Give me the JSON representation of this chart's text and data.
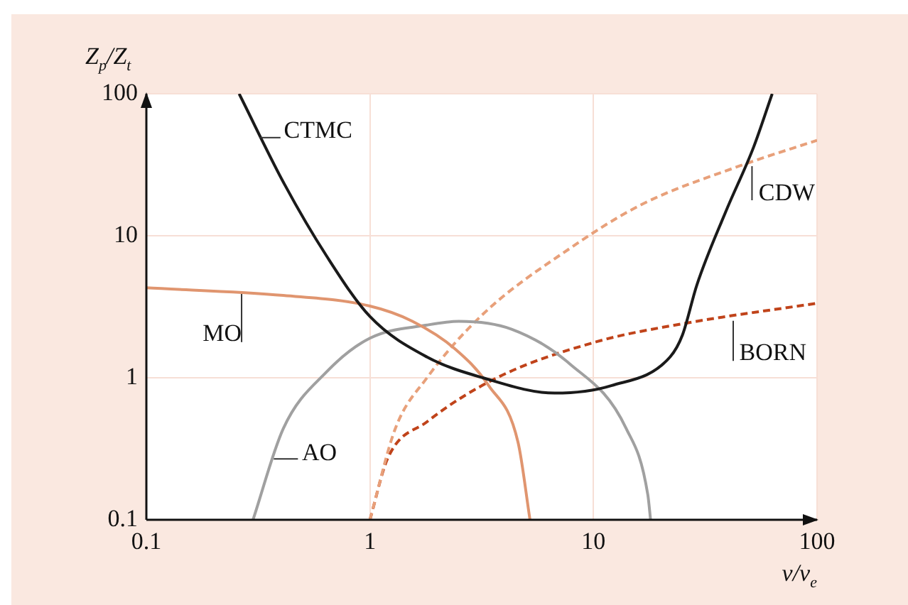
{
  "chart_data": {
    "type": "line",
    "xlabel": "v/v$_{e}$",
    "ylabel": "Z$_{p}$/Z$_{t}$",
    "log": "xy",
    "grid": true,
    "legend": false,
    "marker": "none",
    "xlim": [
      0.1,
      100
    ],
    "xticks": [
      0.1,
      1,
      10,
      100
    ],
    "ylim": [
      0.1,
      100
    ],
    "yticks": [
      0.1,
      1,
      10,
      100
    ],
    "series": [
      {
        "name": "CTMC",
        "color": "#1a1a1a",
        "line_style": "solid",
        "x": [
          0.26,
          0.415,
          0.64,
          1.0,
          1.8,
          3.2,
          6.7,
          12,
          22,
          25,
          29,
          39,
          52,
          63
        ],
        "values": [
          100,
          23,
          7.2,
          2.7,
          1.4,
          1.0,
          0.78,
          0.88,
          1.4,
          2.0,
          4.5,
          14.7,
          42,
          100
        ]
      },
      {
        "name": "MO",
        "color": "#e0956f",
        "line_style": "solid",
        "x": [
          0.1,
          0.41,
          1.0,
          1.55,
          2.4,
          3.4,
          4.6,
          5.2
        ],
        "values": [
          4.3,
          3.8,
          3.2,
          2.5,
          1.6,
          0.88,
          0.35,
          0.1
        ]
      },
      {
        "name": "AO",
        "color": "#a0a0a0",
        "line_style": "solid",
        "x": [
          0.3,
          0.41,
          0.64,
          1.0,
          1.8,
          2.5,
          4.3,
          7.8,
          14,
          17.5,
          18
        ],
        "values": [
          0.1,
          0.44,
          1.1,
          1.9,
          2.35,
          2.5,
          2.2,
          1.26,
          0.44,
          0.15,
          0.1
        ]
      },
      {
        "name": "CDW",
        "color": "#e8a07a",
        "line_style": "dashed",
        "x": [
          1.0,
          1.3,
          1.8,
          3.2,
          7.8,
          16.3,
          45,
          100
        ],
        "values": [
          0.1,
          0.44,
          1.0,
          2.8,
          8.1,
          16.5,
          31,
          47
        ]
      },
      {
        "name": "BORN",
        "color": "#c0431a",
        "line_style": "dashed",
        "x": [
          1.0,
          1.2,
          1.8,
          3.7,
          10.4,
          25,
          100
        ],
        "values": [
          0.1,
          0.27,
          0.49,
          1.0,
          1.8,
          2.4,
          3.35
        ]
      }
    ]
  }
}
